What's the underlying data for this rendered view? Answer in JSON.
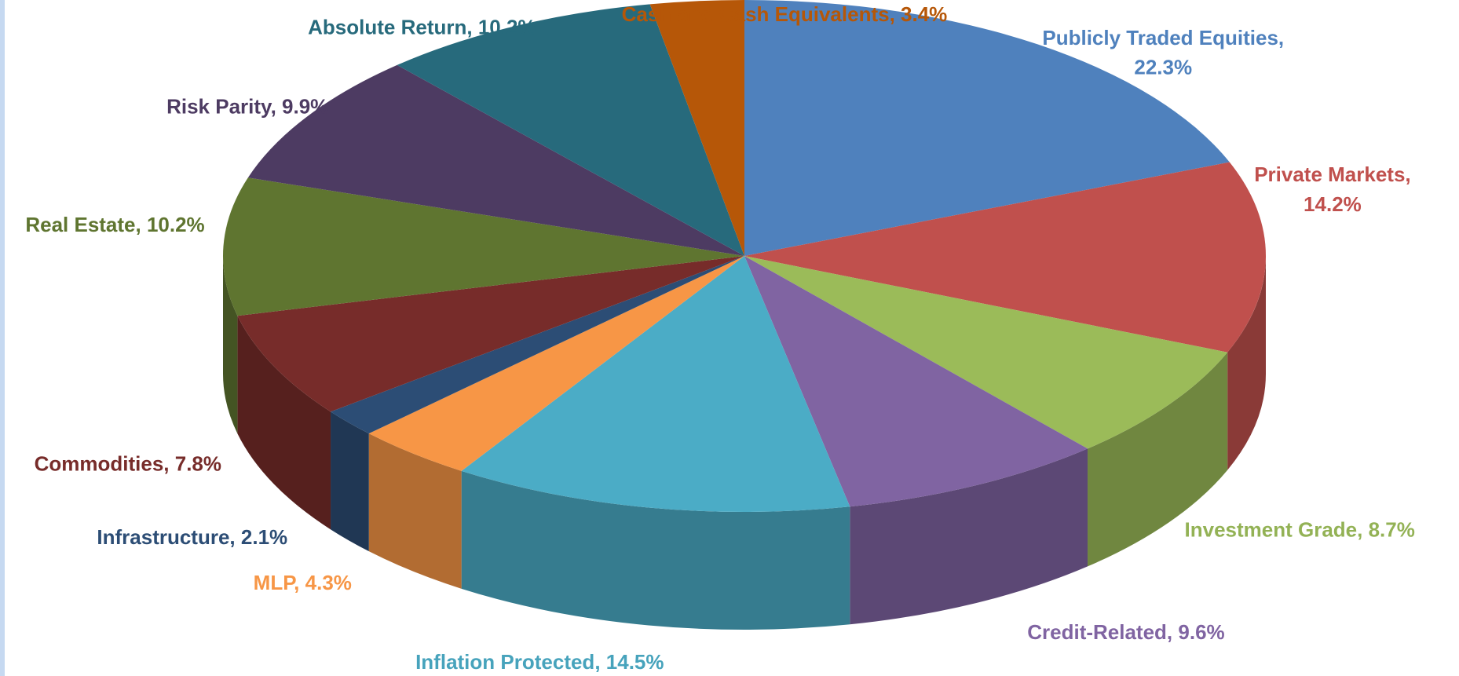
{
  "chart_data": {
    "type": "pie3d",
    "categories": [
      "Publicly Traded Equities",
      "Private Markets",
      "Investment Grade",
      "Credit-Related",
      "Inflation Protected",
      "MLP",
      "Infrastructure",
      "Commodities",
      "Real Estate",
      "Risk Parity",
      "Absolute Return",
      "Cash and Cash Equivalents"
    ],
    "values": [
      22.3,
      14.2,
      8.7,
      9.6,
      14.5,
      4.3,
      2.1,
      7.8,
      10.2,
      9.9,
      10.2,
      3.4
    ],
    "value_labels": [
      "22.3%",
      "14.2%",
      "8.7%",
      "9.6%",
      "14.5%",
      "4.3%",
      "2.1%",
      "7.8%",
      "10.2%",
      "9.9%",
      "10.2%",
      "3.4%"
    ],
    "colors": [
      "#4f81bd",
      "#c0504d",
      "#9bbb59",
      "#8064a2",
      "#4bacc6",
      "#f79646",
      "#2c4d75",
      "#772c2a",
      "#5f7530",
      "#4d3b62",
      "#276a7c",
      "#b65708"
    ]
  }
}
